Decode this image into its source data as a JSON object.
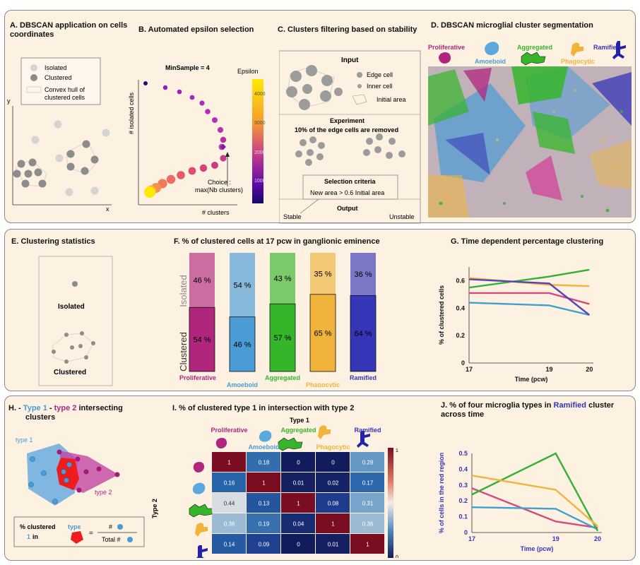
{
  "panel_a": {
    "title_line1": "A. DBSCAN application on cells",
    "title_line2": "coordinates",
    "legend": [
      "Isolated",
      "Clustered",
      "Convex hull of",
      "clustered cells"
    ],
    "axis_y": "y",
    "axis_x": "x"
  },
  "panel_b": {
    "title": "B. Automated epsilon selection",
    "minsample": "MinSample = 4",
    "colorbar_title": "Epsilon",
    "colorbar_ticks": [
      "4000",
      "3000",
      "2000",
      "1000"
    ],
    "ylabel": "# isolated cells",
    "xlabel": "# clusters",
    "choice_line1": "Choice :",
    "choice_line2": "max(Nb clusters)"
  },
  "panel_c": {
    "title": "C. Clusters filtering based on stability",
    "input": "Input",
    "legend": [
      "Edge cell",
      "Inner cell",
      "Initial area"
    ],
    "experiment": "Experiment",
    "removed": "10% of the edge cells are removed",
    "criteria_title": "Selection criteria",
    "criteria_rule": "New area > 0.6 Initial area",
    "output": "Output",
    "stable": "Stable",
    "unstable": "Unstable"
  },
  "panel_d": {
    "title": "D. DBSCAN microglial cluster segmentation",
    "types": [
      "Proliferative",
      "Amoeboid",
      "Aggregated",
      "Phagocytic",
      "Ramified"
    ]
  },
  "panel_e": {
    "title": "E. Clustering statistics",
    "isolated": "Isolated",
    "clustered": "Clustered"
  },
  "colors": {
    "proliferative": "#b0267c",
    "amoeboid": "#4a9bd6",
    "aggregated": "#35b52a",
    "phagocytic": "#f0b43a",
    "ramified": "#3535b8",
    "prolif_line": "#d44b7e",
    "amoeboid_line": "#3fa0d0",
    "aggregated_line": "#33b233",
    "phago_line": "#f2b43c",
    "ramified_line": "#5a44b8"
  },
  "chart_data": [
    {
      "id": "F",
      "type": "bar",
      "title": "F. % of clustered cells at 17 pcw in ganglionic eminence",
      "stack_labels": [
        "Isolated",
        "Clustered"
      ],
      "categories": [
        "Proliferative",
        "Amoeboid",
        "Aggregated",
        "Phagocytic",
        "Ramified"
      ],
      "series": [
        {
          "name": "Clustered",
          "values": [
            54,
            46,
            57,
            65,
            64
          ],
          "labels": [
            "54 %",
            "46 %",
            "57 %",
            "65 %",
            "64 %"
          ]
        },
        {
          "name": "Isolated",
          "values": [
            46,
            54,
            43,
            35,
            36
          ],
          "labels": [
            "46 %",
            "54 %",
            "43 %",
            "35 %",
            "36 %"
          ]
        }
      ]
    },
    {
      "id": "G",
      "type": "line",
      "title": "G. Time dependent percentage clustering",
      "xlabel": "Time (pcw)",
      "ylabel": "% of clustered cells",
      "x": [
        17,
        19,
        20
      ],
      "x_ticks": [
        "17",
        "19",
        "20"
      ],
      "ylim": [
        0,
        0.7
      ],
      "y_ticks": [
        "0",
        "0.2",
        "0.4",
        "0.6"
      ],
      "series": [
        {
          "name": "Proliferative",
          "values": [
            0.51,
            0.51,
            0.43
          ]
        },
        {
          "name": "Amoeboid",
          "values": [
            0.44,
            0.42,
            0.35
          ]
        },
        {
          "name": "Aggregated",
          "values": [
            0.55,
            0.63,
            0.68
          ]
        },
        {
          "name": "Phagocytic",
          "values": [
            0.62,
            0.57,
            0.56
          ]
        },
        {
          "name": "Ramified",
          "values": [
            0.61,
            0.58,
            0.35
          ]
        }
      ]
    },
    {
      "id": "I",
      "type": "heatmap",
      "title": "I. % of clustered type 1 in intersection with type 2",
      "x_title": "Type 1",
      "y_title": "Type 2",
      "columns": [
        "Proliferative",
        "Amoeboid",
        "Aggregated",
        "Phagocytic",
        "Ramified"
      ],
      "values": [
        [
          1,
          0.18,
          0,
          0,
          0.28
        ],
        [
          0.16,
          1,
          0.01,
          0.02,
          0.17
        ],
        [
          0.44,
          0.13,
          1,
          0.08,
          0.31
        ],
        [
          0.36,
          0.19,
          0.04,
          1,
          0.36
        ],
        [
          0.14,
          0.09,
          0,
          0.01,
          1
        ]
      ],
      "labels": [
        [
          "1",
          "0.18",
          "0",
          "0",
          "0.28"
        ],
        [
          "0.16",
          "1",
          "0.01",
          "0.02",
          "0.17"
        ],
        [
          "0.44",
          "0.13",
          "1",
          "0.08",
          "0.31"
        ],
        [
          "0.36",
          "0.19",
          "0.04",
          "1",
          "0.36"
        ],
        [
          "0.14",
          "0.09",
          "0",
          "0.01",
          "1"
        ]
      ],
      "colorbar_ticks": [
        "1",
        "0"
      ]
    },
    {
      "id": "J",
      "type": "line",
      "title_line1_prefix": "J. % of four microglia types in",
      "title_highlight": "Ramified",
      "title_line1_suffix": "cluster",
      "title_line2": "across time",
      "xlabel": "Time (pcw)",
      "ylabel": "% of cells in the red region",
      "x": [
        17,
        19,
        20
      ],
      "x_ticks": [
        "17",
        "19",
        "20"
      ],
      "ylim": [
        0,
        0.5
      ],
      "y_ticks": [
        "0",
        "0.1",
        "0.2",
        "0.3",
        "0.4",
        "0.5"
      ],
      "series": [
        {
          "name": "Proliferative",
          "values": [
            0.28,
            0.07,
            0.03
          ]
        },
        {
          "name": "Amoeboid",
          "values": [
            0.16,
            0.15,
            0.02
          ]
        },
        {
          "name": "Aggregated",
          "values": [
            0.24,
            0.5,
            0.01
          ]
        },
        {
          "name": "Phagocytic",
          "values": [
            0.36,
            0.27,
            0.04
          ]
        }
      ]
    }
  ],
  "panel_h": {
    "title_line1_prefix": "H. -",
    "title_type1": "Type 1",
    "title_dash": "-",
    "title_type2": "type 2",
    "title_suffix": "intersecting",
    "title_line2": "clusters",
    "type1": "type 1",
    "type2": "type 2",
    "formula_left1_a": "% clustered",
    "formula_left1_b": "type",
    "formula_left2_a": "1",
    "formula_left2_b": "in",
    "formula_equals": "=",
    "formula_num": "#",
    "formula_den": "Total #"
  }
}
